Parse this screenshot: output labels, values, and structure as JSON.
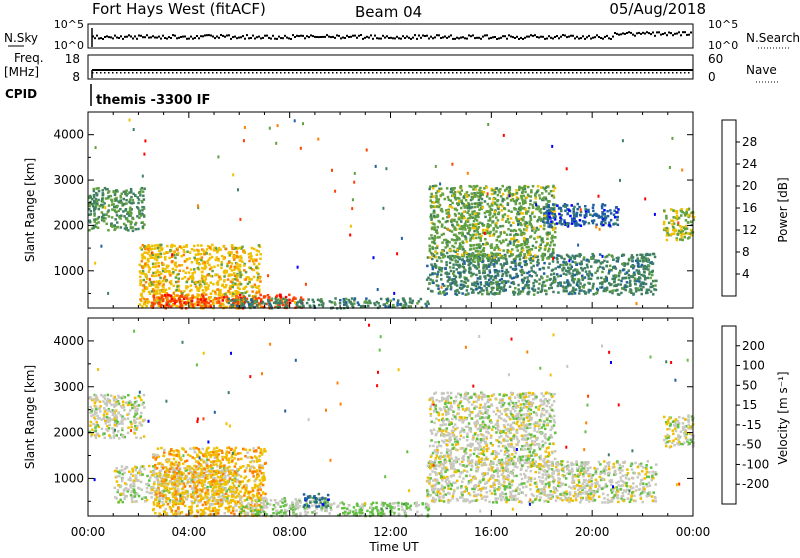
{
  "header": {
    "station": "Fort Hays West (fitACF)",
    "beam": "Beam 04",
    "date": "05/Aug/2018"
  },
  "noise_panel": {
    "left_label": "N.Sky",
    "right_label": "N.Search",
    "left_ticks": [
      "10^5",
      "10^0"
    ],
    "right_ticks": [
      "10^5",
      "10^0"
    ]
  },
  "freq_panel": {
    "left_label": "Freq.",
    "left_unit": "[MHz]",
    "right_label": "Nave",
    "left_ticks": [
      "18",
      "8"
    ],
    "right_ticks": [
      "60",
      "0"
    ]
  },
  "cpid": {
    "label": "CPID",
    "value": "themis -3300 IF"
  },
  "xaxis": {
    "title": "Time UT",
    "ticks": [
      "00:00",
      "04:00",
      "08:00",
      "12:00",
      "16:00",
      "20:00",
      "00:00"
    ]
  },
  "colors": {
    "power": [
      "#0000ff",
      "#2060a0",
      "#408060",
      "#60a040",
      "#f0c000",
      "#ff8000",
      "#ff4000",
      "#ff0000"
    ],
    "velocity": [
      "#ff0000",
      "#ff4000",
      "#ff8000",
      "#f0c000",
      "#c8c8c0",
      "#60c040",
      "#408060",
      "#2060a0",
      "#0000ff"
    ]
  },
  "chart_data": [
    {
      "type": "heatmap",
      "quantity": "power",
      "ylabel": "Slant Range [km]",
      "yticks": [
        1000,
        2000,
        3000,
        4000
      ],
      "ylim": [
        180,
        4500
      ],
      "xlim": [
        0,
        24
      ],
      "colorbar_label": "Power [dB]",
      "colorbar_ticks": [
        "4",
        "8",
        "12",
        "16",
        "20",
        "24",
        "28"
      ],
      "colorbar_range": [
        0,
        32
      ],
      "regions": [
        {
          "t0": 0.0,
          "t1": 2.2,
          "r0": 1900,
          "r1": 2850,
          "level": 12
        },
        {
          "t0": 2.0,
          "t1": 6.8,
          "r0": 200,
          "r1": 1600,
          "level": 18
        },
        {
          "t0": 2.5,
          "t1": 8.5,
          "r0": 200,
          "r1": 500,
          "level": 26
        },
        {
          "t0": 5.5,
          "t1": 13.5,
          "r0": 200,
          "r1": 420,
          "level": 10
        },
        {
          "t0": 13.4,
          "t1": 22.5,
          "r0": 500,
          "r1": 1400,
          "level": 10
        },
        {
          "t0": 13.5,
          "t1": 18.5,
          "r0": 1300,
          "r1": 2900,
          "level": 14
        },
        {
          "t0": 18.0,
          "t1": 21.0,
          "r0": 2000,
          "r1": 2500,
          "level": 6
        },
        {
          "t0": 22.8,
          "t1": 24.0,
          "r0": 1700,
          "r1": 2400,
          "level": 16
        }
      ]
    },
    {
      "type": "heatmap",
      "quantity": "velocity",
      "ylabel": "Slant Range [km]",
      "yticks": [
        1000,
        2000,
        3000,
        4000
      ],
      "ylim": [
        180,
        4500
      ],
      "xlim": [
        0,
        24
      ],
      "colorbar_label": "Velocity [m s⁻¹]",
      "colorbar_ticks": [
        "-200",
        "-100",
        "-50",
        "-15",
        "15",
        "50",
        "100",
        "200"
      ],
      "colorbar_range": [
        -250,
        250
      ],
      "regions": [
        {
          "t0": 0.0,
          "t1": 2.2,
          "r0": 1900,
          "r1": 2850,
          "level": 0
        },
        {
          "t0": 1.0,
          "t1": 6.0,
          "r0": 500,
          "r1": 1300,
          "level": 0
        },
        {
          "t0": 2.5,
          "t1": 7.0,
          "r0": 200,
          "r1": 1700,
          "level": -60
        },
        {
          "t0": 6.0,
          "t1": 9.5,
          "r0": 200,
          "r1": 600,
          "level": 20
        },
        {
          "t0": 8.5,
          "t1": 9.5,
          "r0": 400,
          "r1": 700,
          "level": 160
        },
        {
          "t0": 9.5,
          "t1": 13.5,
          "r0": 200,
          "r1": 500,
          "level": 40
        },
        {
          "t0": 13.4,
          "t1": 22.5,
          "r0": 500,
          "r1": 1400,
          "level": 0
        },
        {
          "t0": 13.5,
          "t1": 18.5,
          "r0": 1300,
          "r1": 2900,
          "level": 0
        },
        {
          "t0": 22.8,
          "t1": 24.0,
          "r0": 1700,
          "r1": 2400,
          "level": 0
        }
      ]
    }
  ]
}
